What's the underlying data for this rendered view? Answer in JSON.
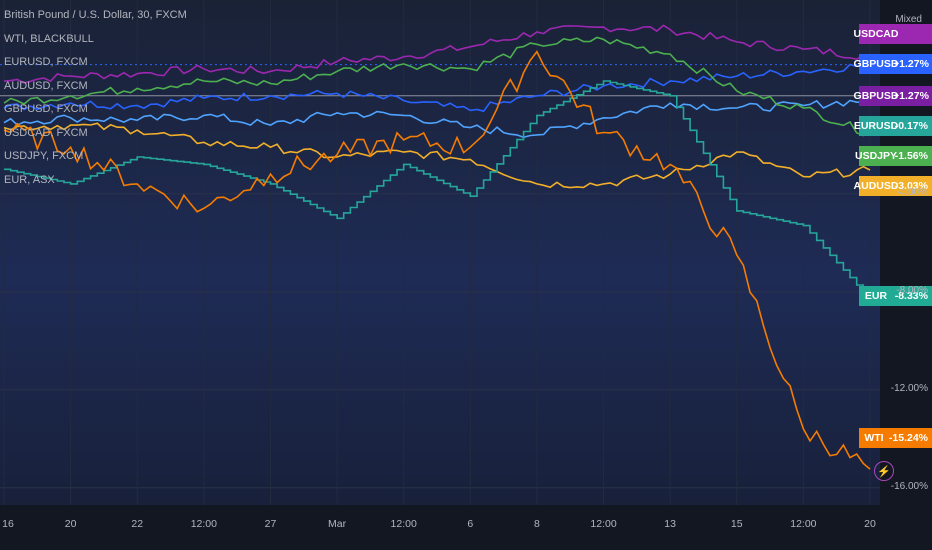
{
  "header": {
    "title": "British Pound / U.S. Dollar, 30, FXCM",
    "scale_mode": "Mixed"
  },
  "legend": [
    "WTI, BLACKBULL",
    "EURUSD, FXCM",
    "AUDUSD, FXCM",
    "GBPUSD, FXCM",
    "USDCAD, FXCM",
    "USDJPY, FXCM",
    "EUR, ASX"
  ],
  "badges": [
    {
      "symbol": "USDCAD",
      "value": "",
      "color": "#9c27b0"
    },
    {
      "symbol": "GBPUSD",
      "value": "+1.27%",
      "color": "#2962ff"
    },
    {
      "symbol": "GBPUSD",
      "value": "+1.27%",
      "color": "#7b1fa2"
    },
    {
      "symbol": "EURUSD",
      "value": "-0.17%",
      "color": "#26a69a"
    },
    {
      "symbol": "USDJPY",
      "value": "-1.56%",
      "color": "#4caf50"
    },
    {
      "symbol": "AUDUSD",
      "value": "-3.03%",
      "color": "#f2b02a"
    },
    {
      "symbol": "EUR",
      "value": "-8.33%",
      "color": "#22ab94"
    },
    {
      "symbol": "WTI",
      "value": "-15.24%",
      "color": "#f57c00"
    }
  ],
  "chart_data": {
    "type": "line",
    "title": "British Pound / U.S. Dollar, 30, FXCM",
    "ylabel": "",
    "ylim": [
      -16.5,
      3.5
    ],
    "grid": true,
    "y_ticks": [
      "-4.00%",
      "-8.00%",
      "-12.00%",
      "-16.00%"
    ],
    "x_ticks": [
      "16",
      "20",
      "22",
      "12:00",
      "27",
      "Mar",
      "12:00",
      "6",
      "8",
      "12:00",
      "13",
      "15",
      "12:00",
      "20"
    ],
    "x": [
      0,
      4,
      8,
      12,
      16,
      20,
      24,
      28,
      32,
      36,
      40,
      44,
      48,
      52
    ],
    "series": [
      {
        "name": "USDCAD",
        "color": "#9c27b0",
        "values": [
          0.6,
          0.8,
          0.9,
          1.1,
          1.0,
          1.4,
          1.6,
          2.0,
          2.6,
          2.8,
          2.7,
          2.2,
          1.9,
          1.6
        ]
      },
      {
        "name": "GBPUSD",
        "color": "#2962ff",
        "values": [
          -0.5,
          -0.3,
          -0.4,
          -0.1,
          0.0,
          0.1,
          -0.2,
          -0.6,
          0.0,
          0.4,
          0.6,
          0.8,
          1.0,
          1.27
        ]
      },
      {
        "name": "EURUSD",
        "color": "#4fa3ff",
        "values": [
          -1.1,
          -0.9,
          -1.0,
          -0.8,
          -1.2,
          -0.7,
          -0.8,
          -1.3,
          -1.6,
          -0.9,
          -0.3,
          -0.5,
          -0.4,
          -0.17
        ]
      },
      {
        "name": "USDJPY",
        "color": "#4caf50",
        "values": [
          -0.3,
          0.0,
          0.3,
          0.6,
          0.5,
          1.0,
          1.3,
          1.1,
          2.1,
          2.3,
          1.7,
          0.2,
          -0.5,
          -1.56
        ]
      },
      {
        "name": "AUDUSD",
        "color": "#f2b02a",
        "values": [
          -1.3,
          -1.2,
          -1.4,
          -1.9,
          -2.1,
          -2.5,
          -2.3,
          -2.6,
          -3.6,
          -3.6,
          -3.2,
          -2.3,
          -3.3,
          -3.03
        ]
      },
      {
        "name": "EUR",
        "color": "#26a69a",
        "values": [
          -3.0,
          -3.6,
          -2.5,
          -2.8,
          -3.6,
          -5.0,
          -2.8,
          -4.1,
          -0.8,
          0.6,
          0.0,
          -4.7,
          -5.3,
          -8.33
        ]
      },
      {
        "name": "WTI",
        "color": "#f57c00",
        "values": [
          -1.4,
          -2.1,
          -3.6,
          -4.6,
          -3.2,
          -2.4,
          -1.8,
          -2.1,
          1.8,
          -1.5,
          -2.8,
          -6.5,
          -13.6,
          -15.24
        ]
      }
    ]
  }
}
